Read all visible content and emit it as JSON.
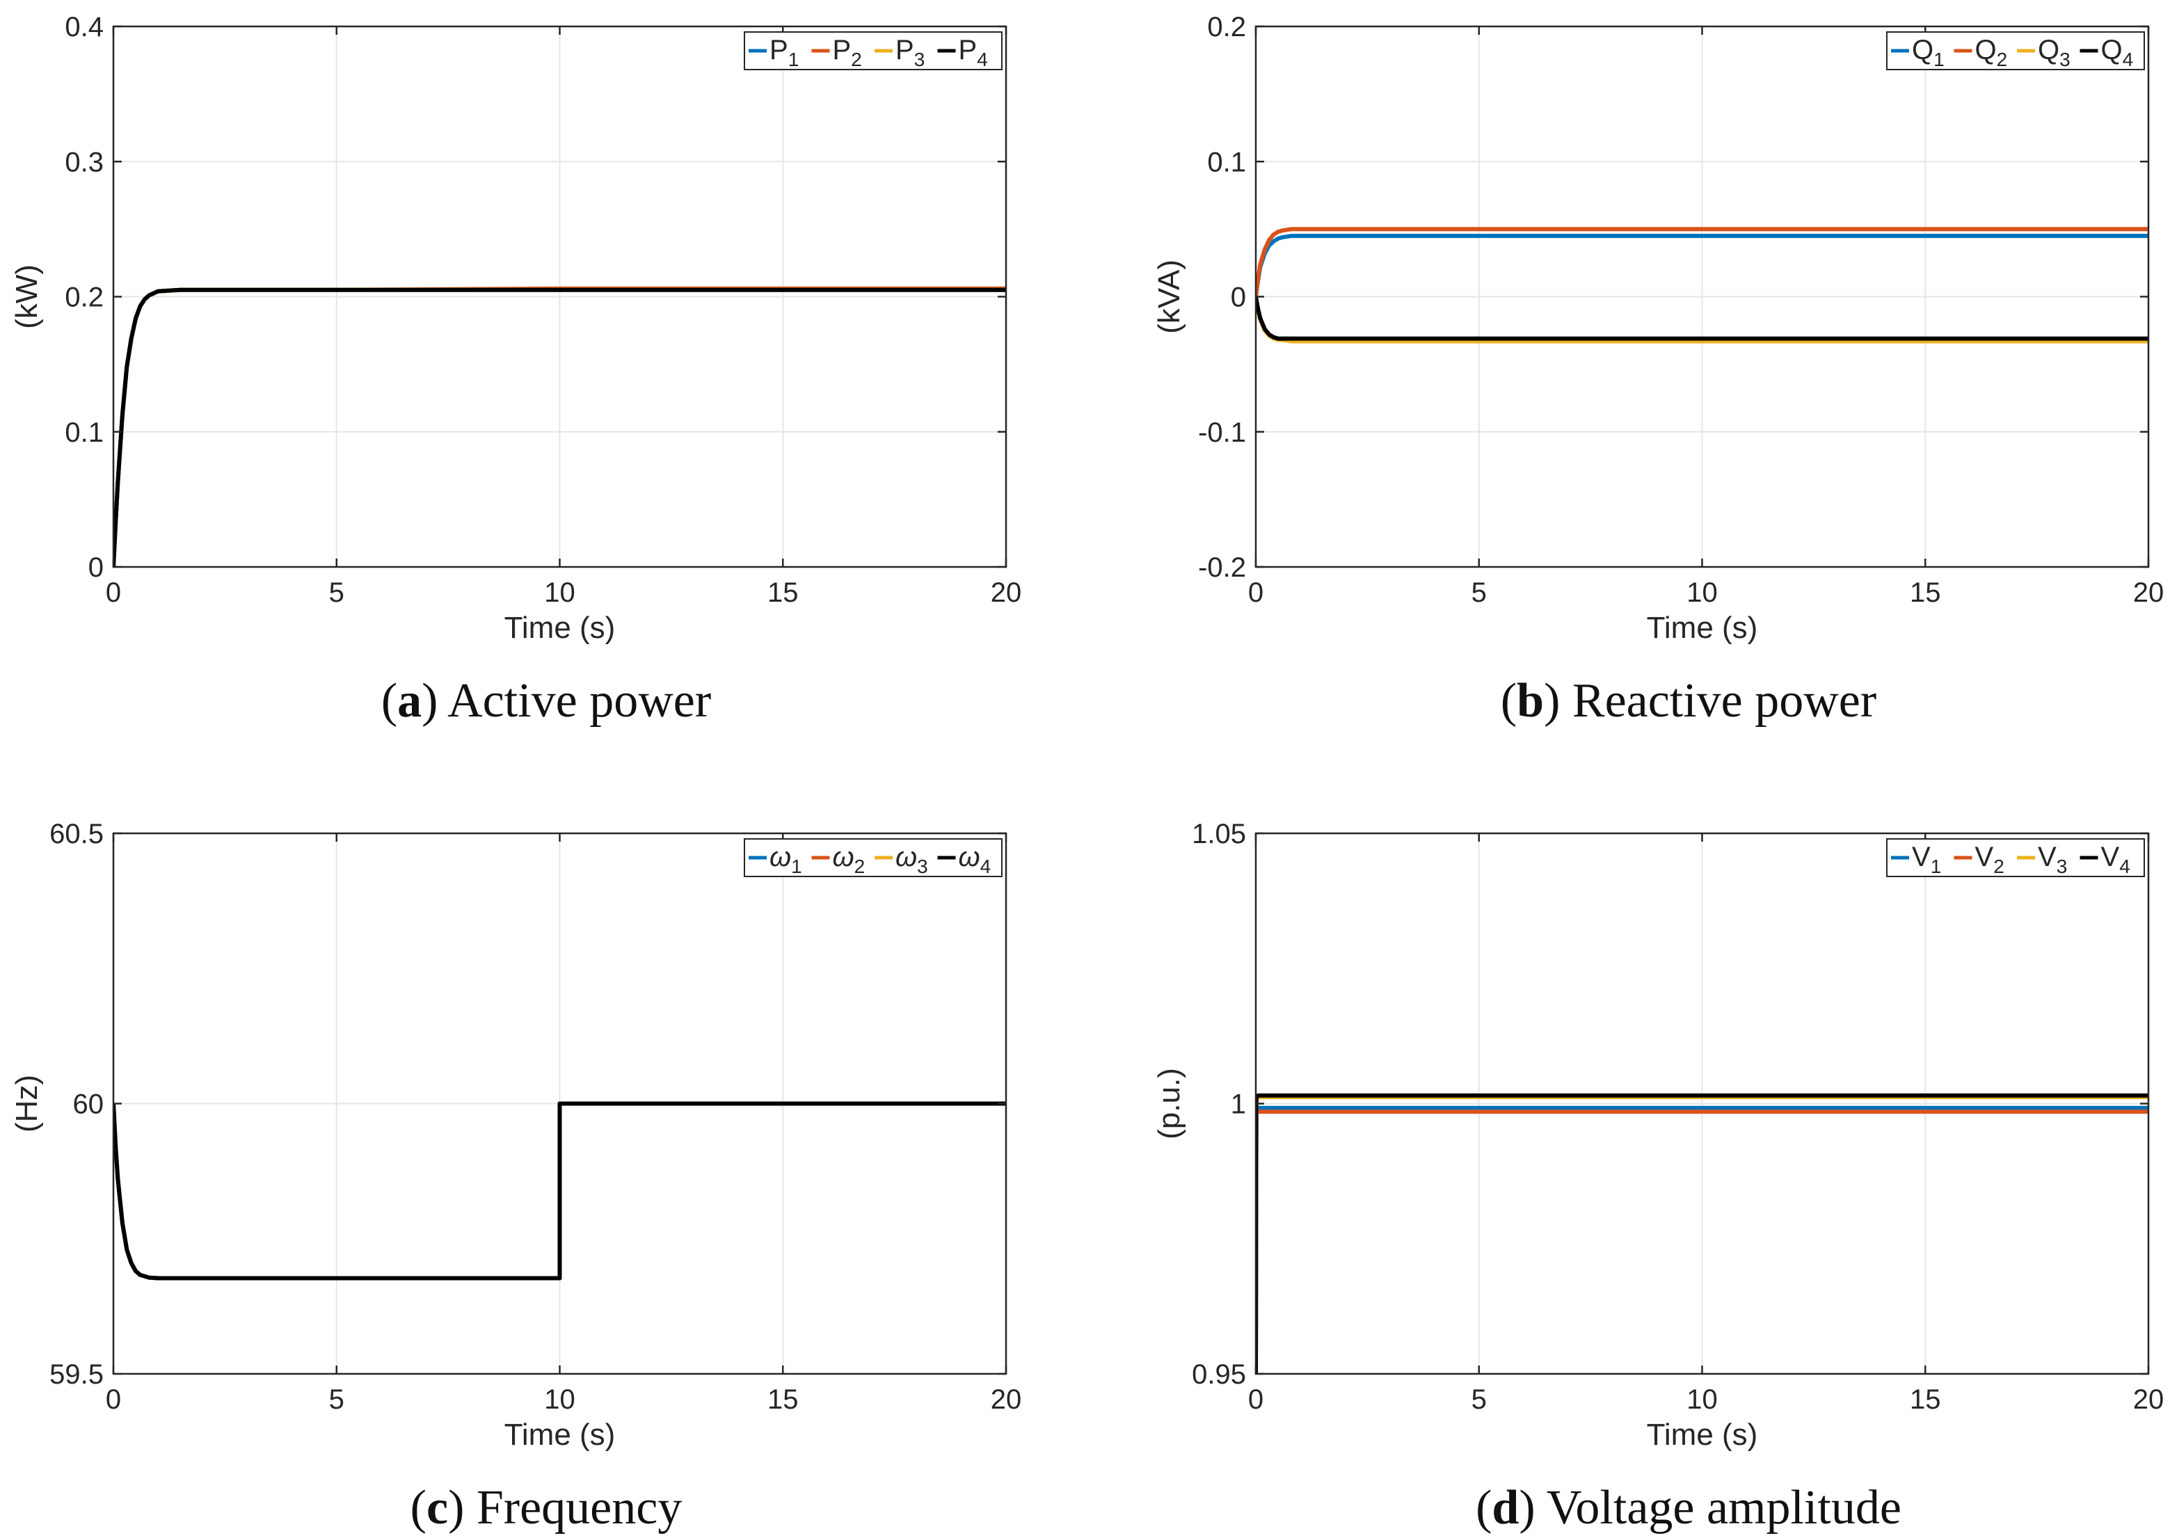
{
  "colors": {
    "series": [
      "#0072bd",
      "#d95319",
      "#edb120",
      "#000000"
    ],
    "grid": "#e6e6e6",
    "axis": "#262626"
  },
  "chart_data": [
    {
      "type": "line",
      "caption_letter": "a",
      "caption_text": "Active power",
      "title": "(a) Active power",
      "xlabel": "Time (s)",
      "ylabel": "(kW)",
      "xlim": [
        0,
        20
      ],
      "ylim": [
        0,
        0.4
      ],
      "xticks": [
        0,
        5,
        10,
        15,
        20
      ],
      "xtick_labels": [
        "0",
        "5",
        "10",
        "15",
        "20"
      ],
      "yticks": [
        0,
        0.1,
        0.2,
        0.3,
        0.4
      ],
      "ytick_labels": [
        "0",
        "0.1",
        "0.2",
        "0.3",
        "0.4"
      ],
      "grid": true,
      "legend_position": "top-right",
      "series": [
        {
          "name": "P1",
          "base": "P",
          "sub": "1",
          "x": [
            0,
            0.05,
            0.1,
            0.2,
            0.3,
            0.4,
            0.5,
            0.6,
            0.7,
            0.8,
            1,
            1.5,
            5,
            10,
            15,
            20
          ],
          "values": [
            0,
            0.033,
            0.063,
            0.112,
            0.148,
            0.169,
            0.184,
            0.193,
            0.198,
            0.201,
            0.204,
            0.205,
            0.205,
            0.205,
            0.205,
            0.205
          ]
        },
        {
          "name": "P2",
          "base": "P",
          "sub": "2",
          "x": [
            0,
            0.05,
            0.1,
            0.2,
            0.3,
            0.4,
            0.5,
            0.6,
            0.7,
            0.8,
            1,
            1.5,
            5,
            10,
            15,
            20
          ],
          "values": [
            0,
            0.033,
            0.063,
            0.112,
            0.148,
            0.169,
            0.184,
            0.193,
            0.198,
            0.201,
            0.204,
            0.205,
            0.205,
            0.206,
            0.206,
            0.206
          ]
        },
        {
          "name": "P3",
          "base": "P",
          "sub": "3",
          "x": [
            0,
            0.05,
            0.1,
            0.2,
            0.3,
            0.4,
            0.5,
            0.6,
            0.7,
            0.8,
            1,
            1.5,
            5,
            10,
            15,
            20
          ],
          "values": [
            0,
            0.033,
            0.063,
            0.112,
            0.148,
            0.169,
            0.184,
            0.193,
            0.198,
            0.201,
            0.204,
            0.205,
            0.205,
            0.205,
            0.205,
            0.205
          ]
        },
        {
          "name": "P4",
          "base": "P",
          "sub": "4",
          "x": [
            0,
            0.05,
            0.1,
            0.2,
            0.3,
            0.4,
            0.5,
            0.6,
            0.7,
            0.8,
            1,
            1.5,
            5,
            10,
            15,
            20
          ],
          "values": [
            0,
            0.033,
            0.063,
            0.112,
            0.148,
            0.169,
            0.184,
            0.193,
            0.198,
            0.201,
            0.204,
            0.205,
            0.205,
            0.205,
            0.205,
            0.205
          ]
        }
      ]
    },
    {
      "type": "line",
      "caption_letter": "b",
      "caption_text": "Reactive power",
      "title": "(b) Reactive power",
      "xlabel": "Time (s)",
      "ylabel": "(kVA)",
      "xlim": [
        0,
        20
      ],
      "ylim": [
        -0.2,
        0.2
      ],
      "xticks": [
        0,
        5,
        10,
        15,
        20
      ],
      "xtick_labels": [
        "0",
        "5",
        "10",
        "15",
        "20"
      ],
      "yticks": [
        -0.2,
        -0.1,
        0,
        0.1,
        0.2
      ],
      "ytick_labels": [
        "-0.2",
        "-0.1",
        "0",
        "0.1",
        "0.2"
      ],
      "grid": true,
      "legend_position": "top-right",
      "series": [
        {
          "name": "Q1",
          "base": "Q",
          "sub": "1",
          "x": [
            0,
            0.05,
            0.1,
            0.2,
            0.3,
            0.4,
            0.5,
            0.6,
            0.8,
            1,
            5,
            10,
            15,
            20
          ],
          "values": [
            0,
            0.012,
            0.022,
            0.032,
            0.038,
            0.041,
            0.043,
            0.044,
            0.045,
            0.045,
            0.045,
            0.045,
            0.045,
            0.045
          ]
        },
        {
          "name": "Q2",
          "base": "Q",
          "sub": "2",
          "x": [
            0,
            0.05,
            0.1,
            0.2,
            0.3,
            0.4,
            0.5,
            0.6,
            0.8,
            1,
            5,
            10,
            15,
            20
          ],
          "values": [
            0,
            0.013,
            0.024,
            0.035,
            0.042,
            0.046,
            0.048,
            0.049,
            0.05,
            0.05,
            0.05,
            0.05,
            0.05,
            0.05
          ]
        },
        {
          "name": "Q3",
          "base": "Q",
          "sub": "3",
          "x": [
            0,
            0.05,
            0.1,
            0.2,
            0.3,
            0.4,
            0.5,
            0.6,
            0.8,
            1,
            5,
            10,
            15,
            20
          ],
          "values": [
            0,
            -0.01,
            -0.017,
            -0.025,
            -0.029,
            -0.031,
            -0.032,
            -0.032,
            -0.033,
            -0.033,
            -0.033,
            -0.033,
            -0.033,
            -0.033
          ]
        },
        {
          "name": "Q4",
          "base": "Q",
          "sub": "4",
          "x": [
            0,
            0.05,
            0.1,
            0.2,
            0.3,
            0.4,
            0.5,
            0.6,
            0.8,
            1,
            5,
            10,
            15,
            20
          ],
          "values": [
            0,
            -0.009,
            -0.016,
            -0.024,
            -0.028,
            -0.03,
            -0.031,
            -0.031,
            -0.031,
            -0.031,
            -0.031,
            -0.031,
            -0.031,
            -0.031
          ]
        }
      ]
    },
    {
      "type": "line",
      "caption_letter": "c",
      "caption_text": "Frequency",
      "title": "(c) Frequency",
      "xlabel": "Time (s)",
      "ylabel": "(Hz)",
      "xlim": [
        0,
        20
      ],
      "ylim": [
        59.5,
        60.5
      ],
      "xticks": [
        0,
        5,
        10,
        15,
        20
      ],
      "xtick_labels": [
        "0",
        "5",
        "10",
        "15",
        "20"
      ],
      "yticks": [
        59.5,
        60,
        60.5
      ],
      "ytick_labels": [
        "59.5",
        "60",
        "60.5"
      ],
      "grid": true,
      "legend_position": "top-right",
      "series": [
        {
          "name": "ω1",
          "base": "ω",
          "sub": "1",
          "x": [
            0,
            0.05,
            0.1,
            0.2,
            0.3,
            0.4,
            0.5,
            0.6,
            0.8,
            1,
            5,
            10,
            10,
            15,
            20
          ],
          "values": [
            60,
            59.92,
            59.86,
            59.78,
            59.73,
            59.705,
            59.69,
            59.683,
            59.678,
            59.677,
            59.677,
            59.677,
            60,
            60,
            60
          ]
        },
        {
          "name": "ω2",
          "base": "ω",
          "sub": "2",
          "x": [
            0,
            0.05,
            0.1,
            0.2,
            0.3,
            0.4,
            0.5,
            0.6,
            0.8,
            1,
            5,
            10,
            10,
            15,
            20
          ],
          "values": [
            60,
            59.92,
            59.86,
            59.78,
            59.73,
            59.705,
            59.69,
            59.683,
            59.678,
            59.677,
            59.677,
            59.677,
            60,
            60,
            60
          ]
        },
        {
          "name": "ω3",
          "base": "ω",
          "sub": "3",
          "x": [
            0,
            0.05,
            0.1,
            0.2,
            0.3,
            0.4,
            0.5,
            0.6,
            0.8,
            1,
            5,
            10,
            10,
            15,
            20
          ],
          "values": [
            60,
            59.92,
            59.86,
            59.78,
            59.73,
            59.705,
            59.69,
            59.683,
            59.678,
            59.677,
            59.677,
            59.677,
            60,
            60,
            60
          ]
        },
        {
          "name": "ω4",
          "base": "ω",
          "sub": "4",
          "x": [
            0,
            0.05,
            0.1,
            0.2,
            0.3,
            0.4,
            0.5,
            0.6,
            0.8,
            1,
            5,
            10,
            10,
            15,
            20
          ],
          "values": [
            60,
            59.92,
            59.86,
            59.78,
            59.73,
            59.705,
            59.69,
            59.683,
            59.678,
            59.677,
            59.677,
            59.677,
            60,
            60,
            60
          ]
        }
      ]
    },
    {
      "type": "line",
      "caption_letter": "d",
      "caption_text": "Voltage amplitude",
      "title": "(d) Voltage amplitude",
      "xlabel": "Time (s)",
      "ylabel": "(p.u.)",
      "xlim": [
        0,
        20
      ],
      "ylim": [
        0.95,
        1.05
      ],
      "xticks": [
        0,
        5,
        10,
        15,
        20
      ],
      "xtick_labels": [
        "0",
        "5",
        "10",
        "15",
        "20"
      ],
      "yticks": [
        0.95,
        1,
        1.05
      ],
      "ytick_labels": [
        "0.95",
        "1",
        "1.05"
      ],
      "grid": true,
      "legend_position": "top-right",
      "series": [
        {
          "name": "V1",
          "base": "V",
          "sub": "1",
          "x": [
            0,
            0.01,
            0.05,
            10,
            15,
            20
          ],
          "values": [
            0.95,
            0.999,
            0.9992,
            0.9992,
            0.9992,
            0.9992
          ]
        },
        {
          "name": "V2",
          "base": "V",
          "sub": "2",
          "x": [
            0,
            0.01,
            0.05,
            10,
            15,
            20
          ],
          "values": [
            0.95,
            0.999,
            0.9985,
            0.9985,
            0.9985,
            0.9985
          ]
        },
        {
          "name": "V3",
          "base": "V",
          "sub": "3",
          "x": [
            0,
            0.01,
            0.05,
            10,
            15,
            20
          ],
          "values": [
            0.95,
            1.0,
            1.0012,
            1.0012,
            1.0012,
            1.0012
          ]
        },
        {
          "name": "V4",
          "base": "V",
          "sub": "4",
          "x": [
            0,
            0.01,
            0.05,
            10,
            15,
            20
          ],
          "values": [
            0.95,
            1.001,
            1.0015,
            1.0015,
            1.0015,
            1.0015
          ]
        }
      ]
    }
  ]
}
